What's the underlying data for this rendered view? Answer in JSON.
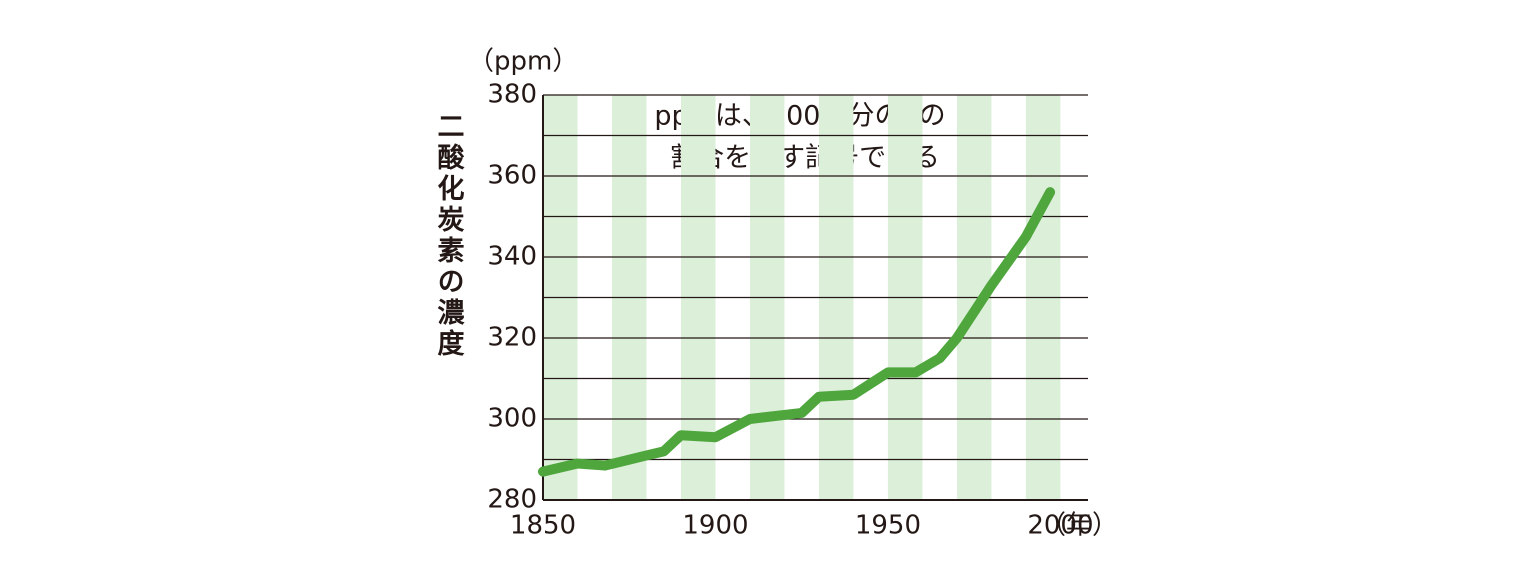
{
  "chart_data": {
    "type": "line",
    "y_label": "二酸化炭素の濃度",
    "y_unit": "（ppm）",
    "x_unit": "（年）",
    "annotation": [
      "ppmは、100万分の1の",
      "割合を表す記号である"
    ],
    "x": [
      1850,
      1860,
      1868,
      1880,
      1885,
      1890,
      1900,
      1910,
      1920,
      1925,
      1930,
      1940,
      1950,
      1958,
      1965,
      1970,
      1980,
      1990,
      1997
    ],
    "series": [
      {
        "name": "CO2",
        "color": "#4ea63d",
        "values": [
          287,
          289,
          288.5,
          291,
          292,
          296,
          295.5,
          300,
          301,
          301.5,
          305.5,
          306,
          311.5,
          311.5,
          315,
          320,
          333,
          345,
          356
        ]
      }
    ],
    "xlim": [
      1850,
      2008
    ],
    "xticks": [
      1850,
      1900,
      1950,
      2000
    ],
    "ylim": [
      280,
      380
    ],
    "yticks": [
      280,
      300,
      320,
      340,
      360,
      380
    ],
    "minor_yticks": [
      290,
      310,
      330,
      350,
      370
    ],
    "shaded_bands": [
      [
        1850,
        1860
      ],
      [
        1870,
        1880
      ],
      [
        1890,
        1900
      ],
      [
        1910,
        1920
      ],
      [
        1930,
        1940
      ],
      [
        1950,
        1960
      ],
      [
        1970,
        1980
      ],
      [
        1990,
        2000
      ]
    ],
    "band_color": "#dcefd9",
    "grid": true
  }
}
